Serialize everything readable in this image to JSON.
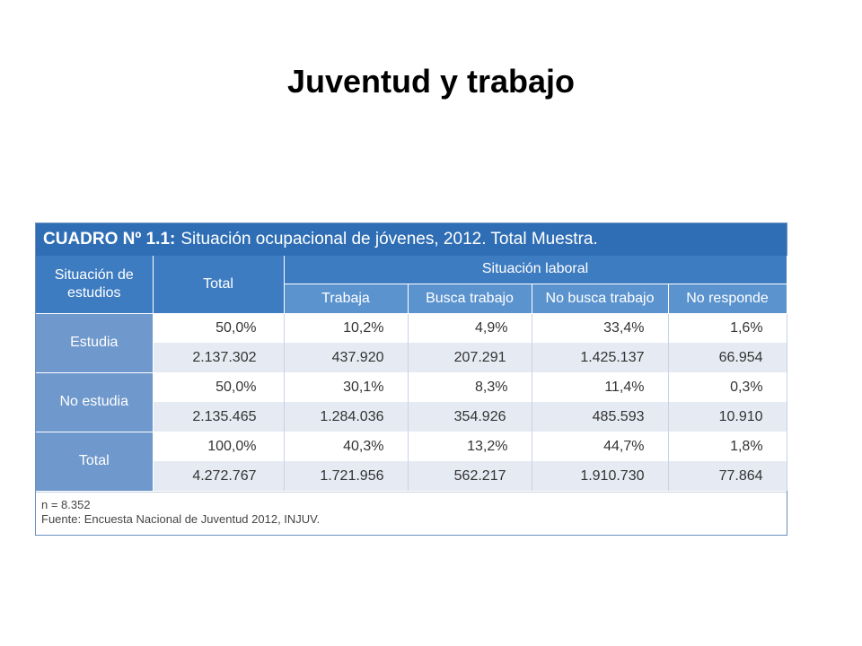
{
  "slide": {
    "title": "Juventud y trabajo"
  },
  "table": {
    "caption_code": "CUADRO Nº 1.1:",
    "caption_text": "Situación ocupacional de jóvenes, 2012. Total Muestra.",
    "header": {
      "situacion_estudios": "Situación de estudios",
      "total": "Total",
      "situacion_laboral": "Situación laboral",
      "sub": [
        "Trabaja",
        "Busca trabajo",
        "No busca trabajo",
        "No responde"
      ]
    },
    "groups": [
      {
        "label": "Estudia",
        "pct": [
          "50,0%",
          "10,2%",
          "4,9%",
          "33,4%",
          "1,6%"
        ],
        "abs": [
          "2.137.302",
          "437.920",
          "207.291",
          "1.425.137",
          "66.954"
        ]
      },
      {
        "label": "No estudia",
        "pct": [
          "50,0%",
          "30,1%",
          "8,3%",
          "11,4%",
          "0,3%"
        ],
        "abs": [
          "2.135.465",
          "1.284.036",
          "354.926",
          "485.593",
          "10.910"
        ]
      },
      {
        "label": "Total",
        "pct": [
          "100,0%",
          "40,3%",
          "13,2%",
          "44,7%",
          "1,8%"
        ],
        "abs": [
          "4.272.767",
          "1.721.956",
          "562.217",
          "1.910.730",
          "77.864"
        ]
      }
    ],
    "notes": {
      "n": "n = 8.352",
      "source": "Fuente: Encuesta Nacional de Juventud 2012, INJUV."
    }
  }
}
